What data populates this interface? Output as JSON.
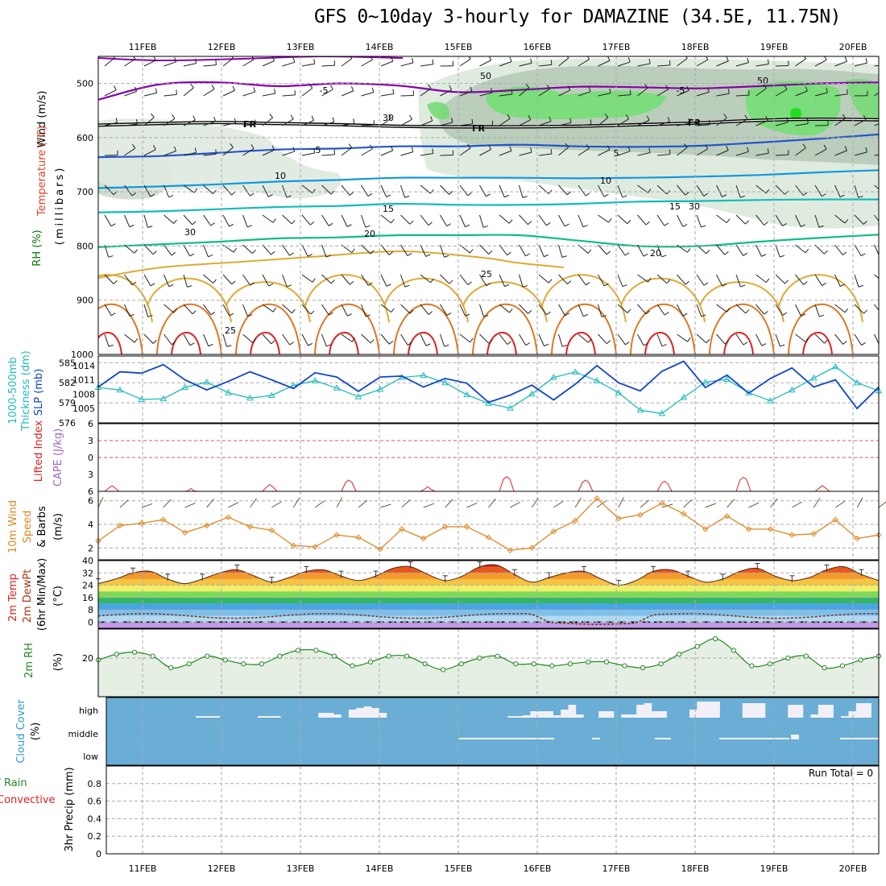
{
  "title": "GFS 0~10day 3-hourly for DAMAZINE (34.5E, 11.75N)",
  "colors": {
    "rh": "#77dd77",
    "rh_shade": "#9cb59c",
    "temp_cold": "#8800aa",
    "temp_fr": "#000000",
    "temp_5": "#2255cc",
    "temp_10": "#1199dd",
    "temp_15": "#11bbbb",
    "temp_20": "#11bb88",
    "temp_25": "#ddaa33",
    "temp_30": "#dd7722",
    "temp_35": "#dd2222",
    "thickness": "#22bbbb",
    "slp": "#1144cc",
    "li": "#dd2222",
    "wind10": "#dd8822",
    "rh2m": "#228822",
    "cloud": "#6aaed6",
    "cloud_gap": "#f2f0f7"
  },
  "dates": [
    "11FEB",
    "12FEB",
    "13FEB",
    "14FEB",
    "15FEB",
    "16FEB",
    "17FEB",
    "18FEB",
    "19FEB",
    "20FEB"
  ],
  "panel_labels": {
    "upper_wind": "Wind (m/s)",
    "upper_temp": "Temperature (°C)",
    "upper_rh": "RH (%)",
    "upper_mb": "(millibars)",
    "thick1": "1000-500mb",
    "thick2": "Thickness (dm)",
    "slp": "SLP (mb)",
    "li": "Lifted Index",
    "cape": "CAPE (J/kg)",
    "wind10_1": "10m Wind",
    "wind10_2": "Speed",
    "wind10_3": "& Barbs",
    "wind10_unit": "(m/s)",
    "t2m_1": "2m Temp",
    "t2m_2": "2m DewPt",
    "t2m_3": "(6hr Min/Max)",
    "t2m_unit": "(°C)",
    "rh2m_1": "2m RH",
    "rh2m_unit": "(%)",
    "cloud_1": "Cloud Cover",
    "cloud_unit": "(%)",
    "precip_1": "Total / Rain",
    "precip_2": "Convective",
    "precip_3": "3hr Precip (mm)",
    "run_total": "Run Total = 0"
  },
  "chart_data": [
    {
      "type": "contour",
      "name": "upper-air",
      "y_ticks": [
        "500",
        "600",
        "700",
        "800",
        "900",
        "1000"
      ],
      "ylim": [
        1000,
        450
      ],
      "contour_labels": {
        "cold": "-5",
        "fr": "FR",
        "t5": "5",
        "t10": "10",
        "t15": "15",
        "t20": "20",
        "t25": "25",
        "rh50": "50",
        "rh30": "30"
      },
      "isotherms": {
        "m5": [
          530,
          502,
          498,
          505,
          500,
          504,
          516,
          512,
          506,
          507,
          509,
          505,
          500,
          498
        ],
        "fr": [
          577,
          574,
          572,
          574,
          576,
          579,
          580,
          580,
          579,
          576,
          573,
          568,
          566,
          567
        ],
        "t5": [
          636,
          634,
          628,
          622,
          620,
          616,
          616,
          613,
          616,
          617,
          615,
          609,
          602,
          594
        ],
        "t10": [
          693,
          690,
          686,
          681,
          678,
          674,
          674,
          674,
          675,
          674,
          672,
          669,
          664,
          660
        ],
        "t15": [
          738,
          736,
          732,
          728,
          726,
          722,
          724,
          724,
          722,
          718,
          717,
          715,
          714,
          714
        ],
        "t20": [
          802,
          797,
          792,
          786,
          784,
          780,
          780,
          780,
          790,
          800,
          800,
          792,
          785,
          779
        ]
      }
    },
    {
      "type": "line",
      "name": "thickness-slp",
      "y_ticks_left": [
        "576",
        "579",
        "582",
        "585"
      ],
      "y_ticks_right": [
        "1005",
        "1008",
        "1011",
        "1014"
      ],
      "thickness": [
        581.3,
        580.9,
        579.5,
        579.6,
        581.3,
        582.1,
        580.5,
        579.7,
        580.1,
        581.6,
        582.3,
        581.2,
        579.9,
        581.0,
        582.8,
        583.1,
        582.0,
        580.2,
        578.9,
        578.2,
        580.3,
        582.8,
        583.6,
        582.3,
        580.5,
        577.9,
        577.4,
        579.8,
        582.1,
        582.5,
        580.5,
        579.3,
        580.9,
        582.7,
        584.4,
        582.0,
        580.8
      ],
      "slp": [
        1009.5,
        1012.7,
        1012.4,
        1014.2,
        1011.0,
        1008.9,
        1010.7,
        1012.7,
        1011.0,
        1009.2,
        1012.5,
        1011.6,
        1008.6,
        1011.6,
        1011.8,
        1009.5,
        1011.3,
        1010.3,
        1006.3,
        1007.8,
        1009.9,
        1006.8,
        1010.1,
        1014.0,
        1010.4,
        1008.7,
        1012.8,
        1014.9,
        1009.4,
        1012.0,
        1008.2,
        1011.3,
        1013.5,
        1009.5,
        1011.0,
        1005.0,
        1009.5
      ]
    },
    {
      "type": "line",
      "name": "lifted-index-cape",
      "y_ticks": [
        "-6",
        "-3",
        "0",
        "3",
        "6"
      ],
      "ylim": [
        -6,
        6
      ],
      "li_peaks": [
        1.0,
        0.5,
        1.2,
        2.0,
        0.8,
        2.6,
        2.0,
        1.8,
        2.5,
        1.0
      ]
    },
    {
      "type": "line",
      "name": "10m-wind",
      "y_ticks": [
        "2",
        "4",
        "6"
      ],
      "speed": [
        2.6,
        3.9,
        4.1,
        4.4,
        3.3,
        3.9,
        4.6,
        3.8,
        3.5,
        2.2,
        2.1,
        3.1,
        2.9,
        1.9,
        3.6,
        2.8,
        3.8,
        3.8,
        2.9,
        1.8,
        2.0,
        3.4,
        4.3,
        6.2,
        4.5,
        4.8,
        5.8,
        4.9,
        3.6,
        4.7,
        3.6,
        3.6,
        3.1,
        3.2,
        4.4,
        2.8,
        3.1
      ]
    },
    {
      "type": "area",
      "name": "2m-temp",
      "y_ticks": [
        "0",
        "8",
        "16",
        "24",
        "32",
        "40"
      ],
      "ylim": [
        -4,
        40
      ],
      "temp": [
        25,
        28,
        32,
        33,
        28,
        25,
        28,
        32,
        34,
        30,
        26,
        29,
        33,
        34,
        30,
        27,
        30,
        35,
        36,
        31,
        27,
        30,
        36,
        37,
        31,
        26,
        29,
        32,
        33,
        28,
        24,
        27,
        33,
        34,
        30,
        26,
        28,
        33,
        35,
        30,
        27,
        29,
        34,
        36,
        31,
        27
      ]
    },
    {
      "type": "area",
      "name": "2m-rh",
      "y_ticks": [
        "20"
      ],
      "ylim": [
        0,
        35
      ],
      "rh": [
        19,
        22,
        23,
        21,
        15,
        17,
        21,
        19,
        17,
        17,
        21,
        24,
        24,
        21,
        16,
        18,
        21,
        21,
        17,
        14,
        17,
        20,
        21,
        17,
        17,
        16,
        17,
        18,
        18,
        16,
        15,
        17,
        22,
        26,
        30,
        24,
        16,
        17,
        20,
        21,
        15,
        16,
        19,
        21
      ]
    },
    {
      "type": "bar",
      "name": "cloud-cover",
      "y_ticks": [
        "high",
        "middle",
        "low"
      ]
    },
    {
      "type": "bar",
      "name": "3hr-precip",
      "y_ticks": [
        "0",
        "0.2",
        "0.4",
        "0.6",
        "0.8"
      ],
      "ylim": [
        0,
        1
      ],
      "values": []
    }
  ]
}
